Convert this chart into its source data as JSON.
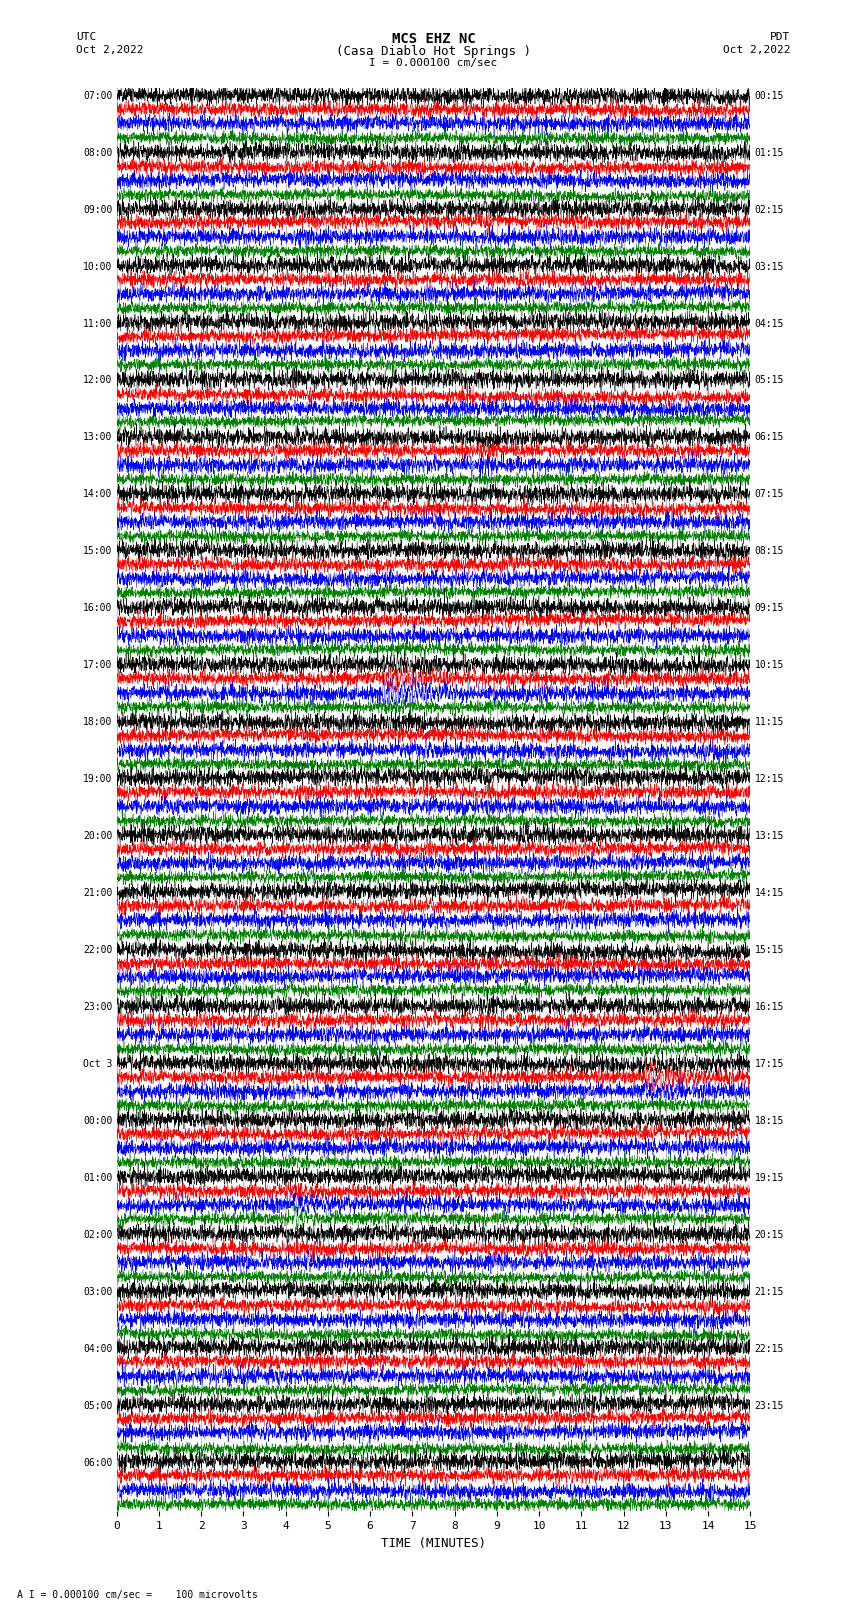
{
  "title_line1": "MCS EHZ NC",
  "title_line2": "(Casa Diablo Hot Springs )",
  "scale_text": "= 0.000100 cm/sec",
  "left_label": "UTC",
  "left_date": "Oct 2,2022",
  "right_label": "PDT",
  "right_date": "Oct 2,2022",
  "bottom_label": "TIME (MINUTES)",
  "bottom_note": "A I = 0.000100 cm/sec =    100 microvolts",
  "xlabel_ticks": [
    0,
    1,
    2,
    3,
    4,
    5,
    6,
    7,
    8,
    9,
    10,
    11,
    12,
    13,
    14,
    15
  ],
  "utc_labels": [
    "07:00",
    "08:00",
    "09:00",
    "10:00",
    "11:00",
    "12:00",
    "13:00",
    "14:00",
    "15:00",
    "16:00",
    "17:00",
    "18:00",
    "19:00",
    "20:00",
    "21:00",
    "22:00",
    "23:00",
    "Oct 3",
    "00:00",
    "01:00",
    "02:00",
    "03:00",
    "04:00",
    "05:00",
    "06:00"
  ],
  "pdt_labels": [
    "00:15",
    "01:15",
    "02:15",
    "03:15",
    "04:15",
    "05:15",
    "06:15",
    "07:15",
    "08:15",
    "09:15",
    "10:15",
    "11:15",
    "12:15",
    "13:15",
    "14:15",
    "15:15",
    "16:15",
    "17:15",
    "18:15",
    "19:15",
    "20:15",
    "21:15",
    "22:15",
    "23:15"
  ],
  "trace_colors": [
    "black",
    "red",
    "blue",
    "green"
  ],
  "n_rows": 25,
  "n_traces_per_row": 4,
  "minutes": 15,
  "background_color": "white",
  "events": [
    {
      "row": 10,
      "traces": [
        0,
        1,
        2,
        3
      ],
      "t0": 6.3,
      "dur": 2.5,
      "amp": [
        2.5,
        3.5,
        4.5,
        1.5
      ],
      "freq": 12.0
    },
    {
      "row": 11,
      "traces": [
        2
      ],
      "t0": 7.3,
      "dur": 0.5,
      "amp": [
        3.0
      ],
      "freq": 10.0
    },
    {
      "row": 15,
      "traces": [
        3
      ],
      "t0": 4.1,
      "dur": 0.08,
      "amp": [
        8.0
      ],
      "freq": 5.0
    },
    {
      "row": 17,
      "traces": [
        0,
        1,
        2,
        3
      ],
      "t0": 12.5,
      "dur": 2.5,
      "amp": [
        2.0,
        4.5,
        2.5,
        1.0
      ],
      "freq": 10.0
    },
    {
      "row": 18,
      "traces": [
        0,
        1,
        2,
        3
      ],
      "t0": 12.5,
      "dur": 1.5,
      "amp": [
        1.5,
        2.0,
        1.0,
        0.8
      ],
      "freq": 10.0
    },
    {
      "row": 19,
      "traces": [
        1,
        2,
        3
      ],
      "t0": 4.2,
      "dur": 0.8,
      "amp": [
        2.0,
        3.5,
        4.0
      ],
      "freq": 8.0
    },
    {
      "row": 20,
      "traces": [
        2
      ],
      "t0": 4.5,
      "dur": 0.4,
      "amp": [
        3.5
      ],
      "freq": 8.0
    },
    {
      "row": 22,
      "traces": [
        3
      ],
      "t0": 13.0,
      "dur": 0.05,
      "amp": [
        6.0
      ],
      "freq": 5.0
    }
  ]
}
